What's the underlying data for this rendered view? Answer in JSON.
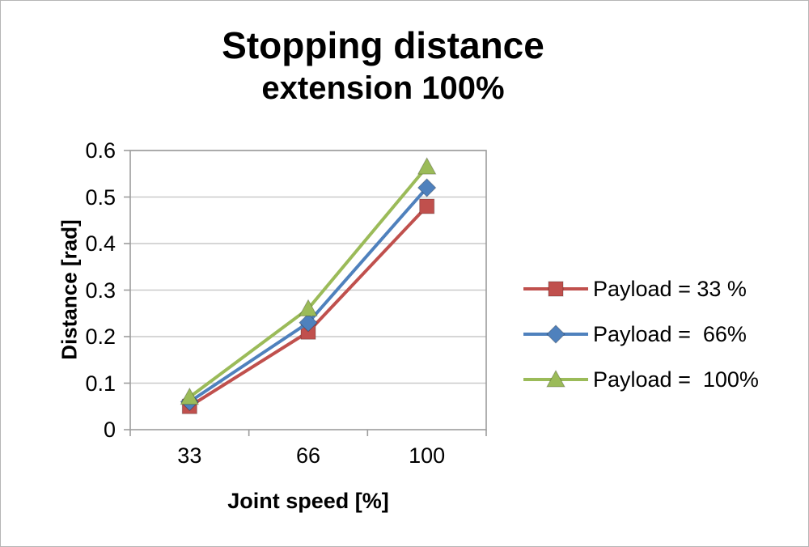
{
  "title": {
    "line1": "Stopping distance",
    "line2": "extension 100%"
  },
  "chart_data": {
    "type": "line",
    "categories": [
      "33",
      "66",
      "100"
    ],
    "x": [
      33,
      66,
      100
    ],
    "series": [
      {
        "name": "Payload = 33 %",
        "values": [
          0.05,
          0.21,
          0.48
        ],
        "color": "#c0504d",
        "marker": "square"
      },
      {
        "name": "Payload =  66%",
        "values": [
          0.06,
          0.23,
          0.52
        ],
        "color": "#4f81bd",
        "marker": "diamond"
      },
      {
        "name": "Payload =  100%",
        "values": [
          0.07,
          0.26,
          0.565
        ],
        "color": "#9bbb59",
        "marker": "triangle"
      }
    ],
    "xlabel": "Joint speed [%]",
    "ylabel": "Distance [rad]",
    "ylim": [
      0,
      0.6
    ],
    "ytick_step": 0.1,
    "grid": true,
    "legend_position": "right",
    "grid_color": "#c9c9c9",
    "axis_color": "#9d9d9d"
  }
}
